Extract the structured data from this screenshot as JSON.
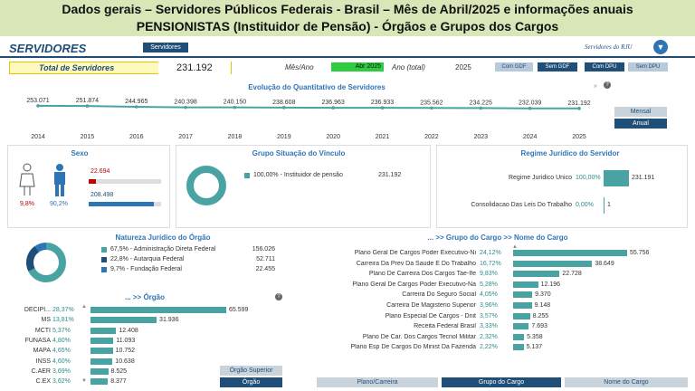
{
  "banner": {
    "line1": "Dados gerais – Servidores Públicos Federais - Brasil – Mês de Abril/2025 e informações anuais",
    "line2": "PENSIONISTAS (Instituidor de Pensão) - Órgãos e Grupos dos Cargos"
  },
  "header": {
    "brand": "SERVIDORES",
    "tab": "Servidores",
    "rju_label": "Servidores do RJU"
  },
  "total": {
    "label": "Total de Servidores",
    "value": "231.192"
  },
  "filters": {
    "mes_label": "Mês/Ano",
    "mes_value": "Abr 2025",
    "ano_label": "Ano (total)",
    "ano_value": "2025",
    "buttons": [
      {
        "label": "Com GDF",
        "style": "light"
      },
      {
        "label": "Sem GDF",
        "style": "dark"
      },
      {
        "label": "Com DPU",
        "style": "dark"
      },
      {
        "label": "Sem DPU",
        "style": "light"
      }
    ]
  },
  "evolution": {
    "title": "Evolução do Quantitativo de Servidores",
    "years": [
      "2014",
      "2015",
      "2016",
      "2017",
      "2018",
      "2019",
      "2020",
      "2021",
      "2022",
      "2023",
      "2024",
      "2025"
    ],
    "values": [
      253071,
      251874,
      244965,
      240398,
      240150,
      238608,
      236963,
      236933,
      235562,
      234225,
      232039,
      231192
    ],
    "labels": [
      "253.071",
      "251.874",
      "244.965",
      "240.398",
      "240.150",
      "238.608",
      "236.963",
      "236.933",
      "235.562",
      "234.225",
      "232.039",
      "231.192"
    ],
    "mensal": "Mensal",
    "anual": "Anual",
    "nav": "»"
  },
  "sexo": {
    "title": "Sexo",
    "fem_value": "22.694",
    "masc_value": "208.498",
    "fem_pct": "9,8%",
    "masc_pct": "90,2%",
    "fem_frac": 0.098,
    "masc_frac": 0.902
  },
  "vinculo": {
    "title": "Grupo Situação do Vínculo",
    "item_label": "100,00% - Instituidor de pensão",
    "item_value": "231.192"
  },
  "regime": {
    "title": "Regime Jurídico do Servidor",
    "rows": [
      {
        "label": "Regime Juridico Unico",
        "pct": "100,00%",
        "value": "231.191",
        "frac": 1.0
      },
      {
        "label": "Consolidacao Das Leis Do Trabalho",
        "pct": "0,00%",
        "value": "1",
        "frac": 0.0
      }
    ]
  },
  "natureza": {
    "title": "Natureza Jurídico do Órgão",
    "rows": [
      {
        "label": "67,5% - Administração Direta Federal",
        "value": "156.026",
        "color": "#4aa3a3"
      },
      {
        "label": "22,8% - Autarquia Federal",
        "value": "52.711",
        "color": "#1f4e79"
      },
      {
        "label": "9,7% - Fundação Federal",
        "value": "22.455",
        "color": "#2e75b6"
      }
    ],
    "fracs": [
      0.675,
      0.228,
      0.097
    ]
  },
  "orgao": {
    "title": "... >> Órgão",
    "rows": [
      {
        "label": "DECIPI...",
        "pct": "28,37%",
        "value": "65.599",
        "frac": 1.0
      },
      {
        "label": "MS",
        "pct": "13,81%",
        "value": "31.936",
        "frac": 0.487
      },
      {
        "label": "MCTI",
        "pct": "5,37%",
        "value": "12.408",
        "frac": 0.189
      },
      {
        "label": "FUNASA",
        "pct": "4,80%",
        "value": "11.093",
        "frac": 0.169
      },
      {
        "label": "MAPA",
        "pct": "4,65%",
        "value": "10.752",
        "frac": 0.164
      },
      {
        "label": "INSS",
        "pct": "4,60%",
        "value": "10.638",
        "frac": 0.162
      },
      {
        "label": "C.AER",
        "pct": "3,69%",
        "value": "8.525",
        "frac": 0.13
      },
      {
        "label": "C.EX",
        "pct": "3,62%",
        "value": "8.377",
        "frac": 0.128
      }
    ],
    "btn_superior": "Órgão Superior",
    "btn_orgao": "Órgão"
  },
  "cargo": {
    "title": "... >> Grupo do Cargo >> Nome do Cargo",
    "rows": [
      {
        "label": "Plano Geral De Cargos Poder Executivo-Ni",
        "pct": "24,12%",
        "value": "55.756",
        "frac": 1.0
      },
      {
        "label": "Carreira Da Prev Da Saude E Do Trabalho",
        "pct": "16,72%",
        "value": "38.649",
        "frac": 0.693
      },
      {
        "label": "Plano De Carreira Dos Cargos Tae-Ife",
        "pct": "9,83%",
        "value": "22.728",
        "frac": 0.408
      },
      {
        "label": "Plano Geral De Cargos Poder Executivo-Na",
        "pct": "5,28%",
        "value": "12.196",
        "frac": 0.219
      },
      {
        "label": "Carreira Do Seguro Social",
        "pct": "4,05%",
        "value": "9.370",
        "frac": 0.168
      },
      {
        "label": "Carreira De Magisterio Superior",
        "pct": "3,96%",
        "value": "9.148",
        "frac": 0.164
      },
      {
        "label": "Plano Especial De Cargos - Dnit",
        "pct": "3,57%",
        "value": "8.255",
        "frac": 0.148
      },
      {
        "label": "Receita Federal Brasil",
        "pct": "3,33%",
        "value": "7.693",
        "frac": 0.138
      },
      {
        "label": "Plano De Car. Dos Cargos Tecnol Militar",
        "pct": "2,32%",
        "value": "5.358",
        "frac": 0.096
      },
      {
        "label": "Plano Esp De Cargos Do Minist Da Fazenda",
        "pct": "2,22%",
        "value": "5.137",
        "frac": 0.092
      }
    ],
    "tabs": [
      "Plano/Carreira",
      "Grupo do Cargo",
      "Nome do Cargo"
    ]
  }
}
